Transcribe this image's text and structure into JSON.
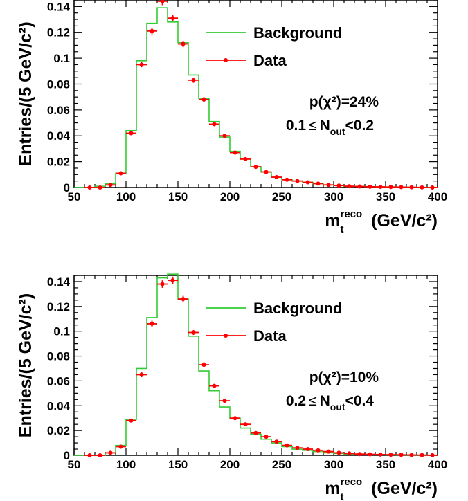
{
  "chart_data": [
    {
      "type": "histogram",
      "xlim": [
        50,
        400
      ],
      "ylim": [
        0,
        0.145
      ],
      "bin_width": 5,
      "xticks": [
        "50",
        "100",
        "150",
        "200",
        "250",
        "300",
        "350",
        "400"
      ],
      "yticks": [
        "0",
        "0.02",
        "0.04",
        "0.06",
        "0.08",
        "0.1",
        "0.12",
        "0.14"
      ],
      "ylabel": "Entries/(5 GeV/c²)",
      "xlabel": {
        "main": "m",
        "sub": "t",
        "sup": "reco",
        "unit": "(GeV/c²)"
      },
      "legend": {
        "background": "Background",
        "data": "Data",
        "position": "top-right"
      },
      "annotations": {
        "p_chi2": "p(χ²)=24%",
        "nout_low": "0.1",
        "leq": "≤",
        "nout_main": "N",
        "nout_sub": "out",
        "nout_high": "<0.2"
      },
      "colors": {
        "background": "#33cc33",
        "data": "#ff0000"
      },
      "background": {
        "bins": [
          50,
          60,
          70,
          80,
          90,
          100,
          110,
          120,
          130,
          140,
          150,
          160,
          170,
          180,
          190,
          200,
          210,
          220,
          230,
          240,
          250,
          260,
          270,
          280,
          290,
          300,
          310,
          320,
          330,
          340,
          350,
          360,
          370,
          380,
          390,
          400
        ],
        "values": [
          0,
          0,
          0.001,
          0.003,
          0.011,
          0.044,
          0.098,
          0.127,
          0.139,
          0.128,
          0.112,
          0.087,
          0.069,
          0.051,
          0.039,
          0.028,
          0.022,
          0.016,
          0.012,
          0.008,
          0.006,
          0.005,
          0.004,
          0.003,
          0.002,
          0.0015,
          0.001,
          0.0008,
          0.0006,
          0.0005,
          0.0004,
          0.0003,
          0.0002,
          0.0001,
          0.0001
        ]
      },
      "data": {
        "x": [
          65,
          75,
          85,
          95,
          105,
          115,
          125,
          135,
          145,
          155,
          165,
          175,
          185,
          195,
          205,
          215,
          225,
          235,
          245,
          255,
          265,
          275,
          285,
          295,
          305,
          315,
          325,
          335,
          345,
          355,
          365,
          375,
          385,
          395
        ],
        "y": [
          0,
          0,
          0.002,
          0.011,
          0.042,
          0.095,
          0.121,
          0.144,
          0.131,
          0.111,
          0.083,
          0.068,
          0.049,
          0.04,
          0.027,
          0.022,
          0.016,
          0.012,
          0.008,
          0.006,
          0.005,
          0.004,
          0.003,
          0.002,
          0.0015,
          0.001,
          0.0008,
          0.0006,
          0.0005,
          0.0004,
          0.0003,
          0.0002,
          0.0001,
          0
        ],
        "err": [
          0,
          0,
          0.0005,
          0.001,
          0.0015,
          0.002,
          0.0025,
          0.003,
          0.0025,
          0.0025,
          0.002,
          0.002,
          0.0015,
          0.0015,
          0.001,
          0.001,
          0.001,
          0.001,
          0.0008,
          0.0007,
          0.0006,
          0.0005,
          0.0005,
          0.0004,
          0.0004,
          0.0003,
          0.0003,
          0.0003,
          0.0002,
          0.0002,
          0.0002,
          0.0002,
          0.0001,
          0.0001
        ]
      }
    },
    {
      "type": "histogram",
      "xlim": [
        50,
        400
      ],
      "ylim": [
        0,
        0.145
      ],
      "bin_width": 5,
      "xticks": [
        "50",
        "100",
        "150",
        "200",
        "250",
        "300",
        "350",
        "400"
      ],
      "yticks": [
        "0",
        "0.02",
        "0.04",
        "0.06",
        "0.08",
        "0.1",
        "0.12",
        "0.14"
      ],
      "ylabel": "Entries/(5 GeV/c²)",
      "xlabel": {
        "main": "m",
        "sub": "t",
        "sup": "reco",
        "unit": "(GeV/c²)"
      },
      "legend": {
        "background": "Background",
        "data": "Data",
        "position": "top-right"
      },
      "annotations": {
        "p_chi2": "p(χ²)=10%",
        "nout_low": "0.2",
        "leq": "≤",
        "nout_main": "N",
        "nout_sub": "out",
        "nout_high": "<0.4"
      },
      "colors": {
        "background": "#33cc33",
        "data": "#ff0000"
      },
      "background": {
        "bins": [
          50,
          60,
          70,
          80,
          90,
          100,
          110,
          120,
          130,
          140,
          150,
          160,
          170,
          180,
          190,
          200,
          210,
          220,
          230,
          240,
          250,
          260,
          270,
          280,
          290,
          300,
          310,
          320,
          330,
          340,
          350,
          360,
          370,
          380,
          390,
          400
        ],
        "values": [
          0,
          0,
          0,
          0.002,
          0.008,
          0.029,
          0.07,
          0.111,
          0.143,
          0.146,
          0.126,
          0.096,
          0.068,
          0.052,
          0.039,
          0.03,
          0.022,
          0.017,
          0.013,
          0.01,
          0.007,
          0.005,
          0.004,
          0.003,
          0.002,
          0.0015,
          0.001,
          0.0008,
          0.0006,
          0.0005,
          0.0004,
          0.0003,
          0.0002,
          0.0001,
          0.0001
        ]
      },
      "data": {
        "x": [
          65,
          75,
          85,
          95,
          105,
          115,
          125,
          135,
          145,
          155,
          165,
          175,
          185,
          195,
          205,
          215,
          225,
          235,
          245,
          255,
          265,
          275,
          285,
          295,
          305,
          315,
          325,
          335,
          345,
          355,
          365,
          375,
          385,
          395
        ],
        "y": [
          0,
          0,
          0.002,
          0.007,
          0.028,
          0.065,
          0.106,
          0.138,
          0.141,
          0.126,
          0.099,
          0.073,
          0.056,
          0.044,
          0.03,
          0.025,
          0.018,
          0.015,
          0.011,
          0.008,
          0.006,
          0.005,
          0.004,
          0.003,
          0.002,
          0.0015,
          0.001,
          0.0008,
          0.0006,
          0.0005,
          0.0004,
          0.0003,
          0.0002,
          0.0001
        ],
        "err": [
          0,
          0,
          0.0005,
          0.001,
          0.0015,
          0.002,
          0.0025,
          0.003,
          0.003,
          0.0025,
          0.002,
          0.002,
          0.0015,
          0.0015,
          0.001,
          0.001,
          0.001,
          0.001,
          0.0008,
          0.0007,
          0.0006,
          0.0005,
          0.0005,
          0.0004,
          0.0004,
          0.0003,
          0.0003,
          0.0003,
          0.0002,
          0.0002,
          0.0002,
          0.0002,
          0.0001,
          0.0001
        ]
      }
    }
  ]
}
